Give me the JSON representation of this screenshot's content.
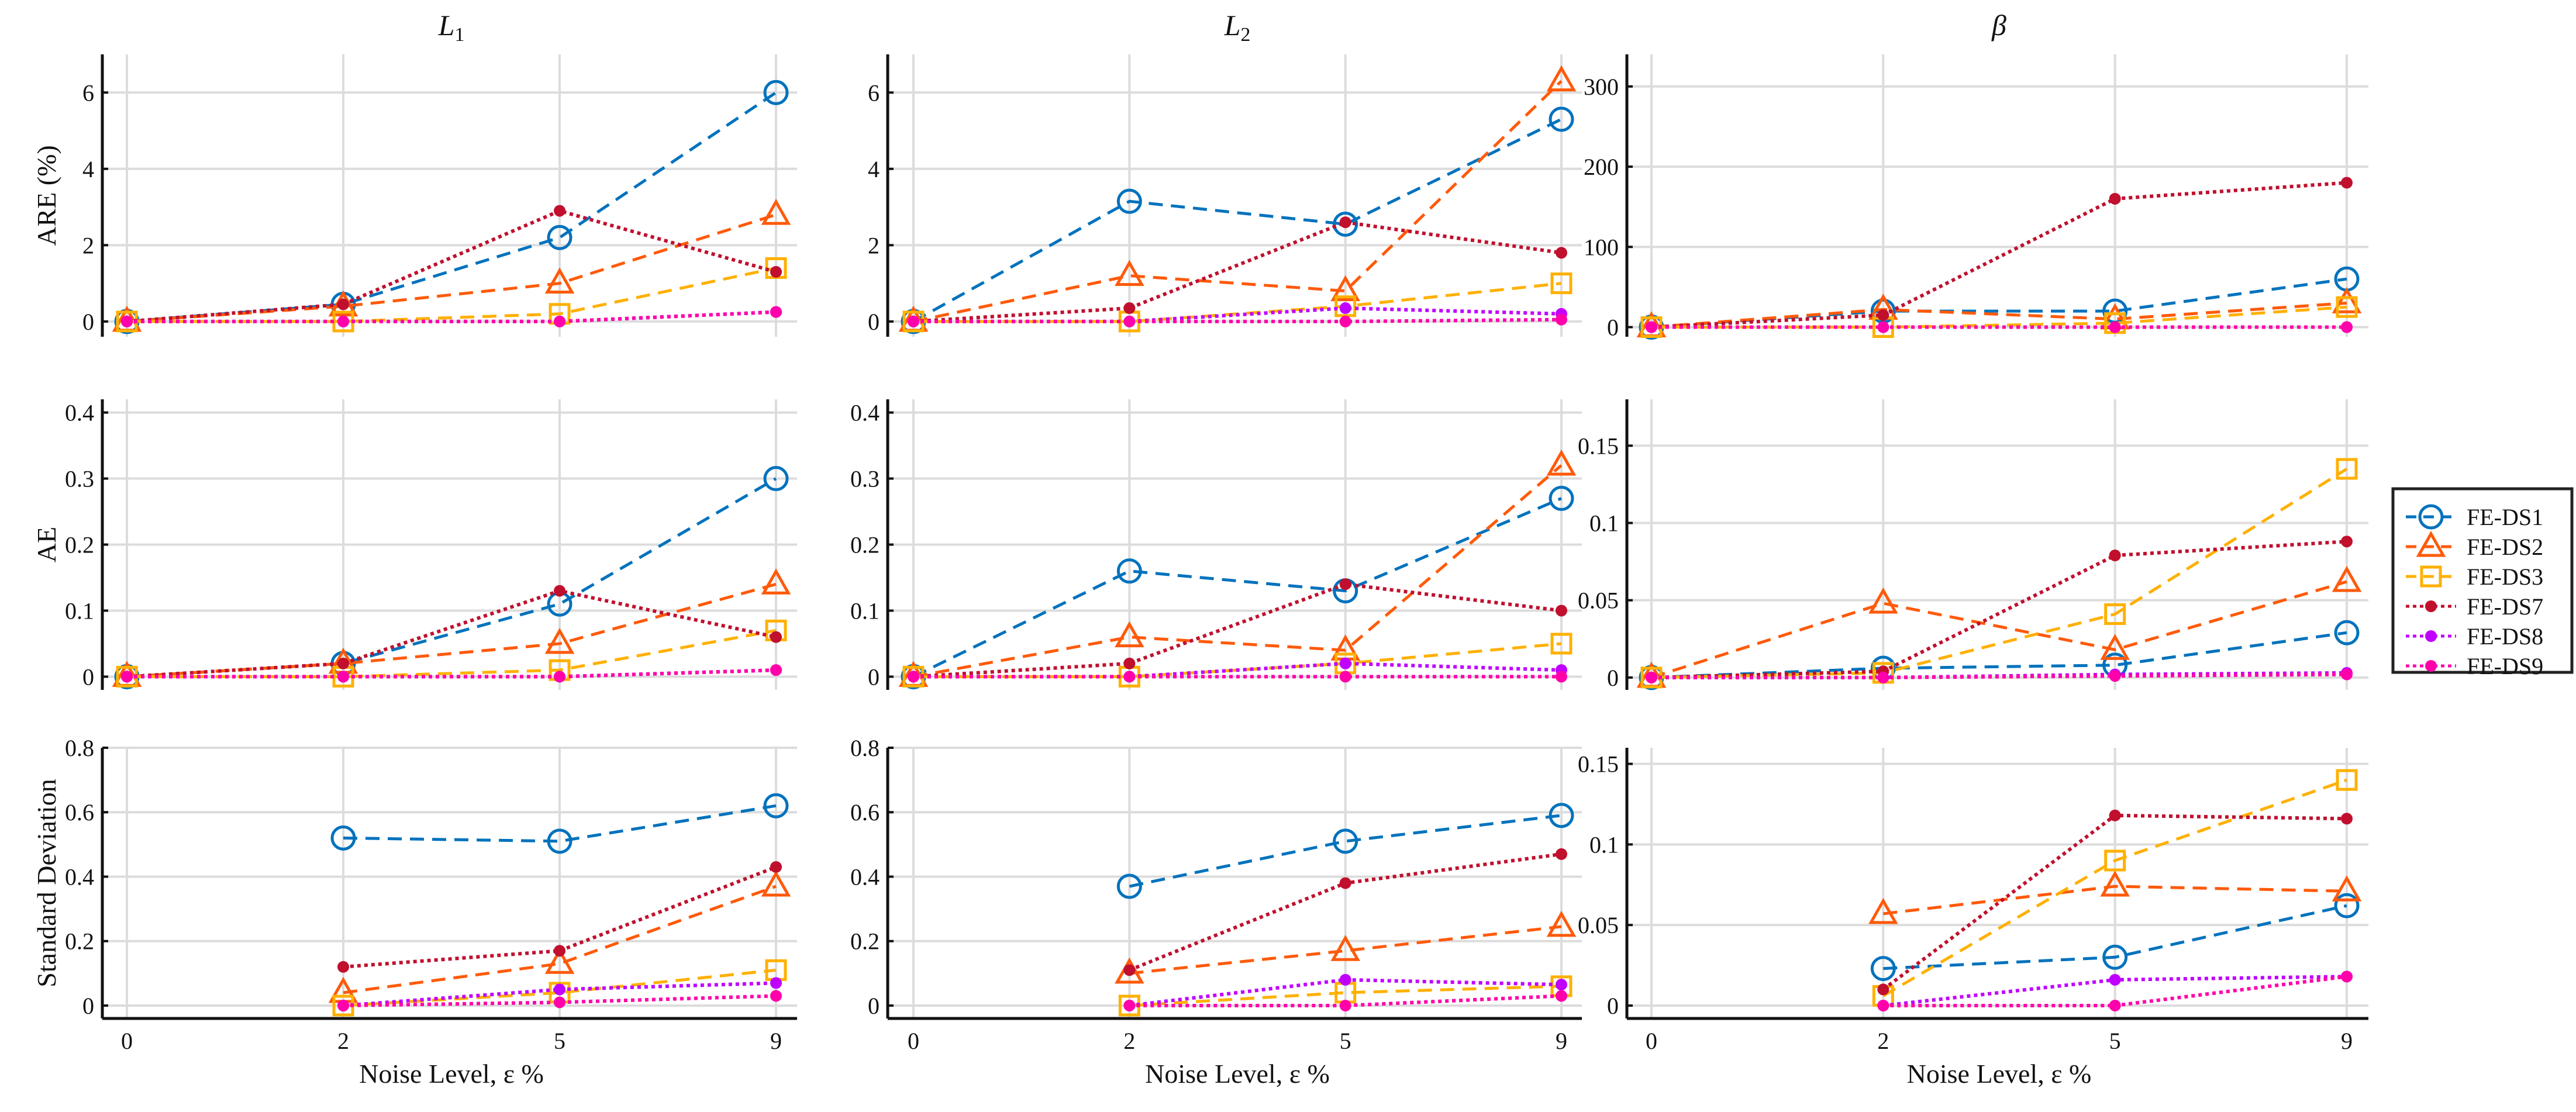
{
  "chart_data": {
    "type": "line",
    "layout": "3x3 grid",
    "x": [
      "0",
      "2",
      "5",
      "9"
    ],
    "xlabel": "Noise Level, ε %",
    "column_titles": [
      "L1",
      "L2",
      "β"
    ],
    "row_ylabels": [
      "ARE (%)",
      "AE",
      "Standard Deviation"
    ],
    "legend": {
      "placement": "right",
      "entries": [
        "FE-DS1",
        "FE-DS2",
        "FE-DS3",
        "FE-DS7",
        "FE-DS8",
        "FE-DS9"
      ]
    },
    "series_style": [
      {
        "name": "FE-DS1",
        "color": "#0072BD",
        "dash": "dashed",
        "marker": "circle"
      },
      {
        "name": "FE-DS2",
        "color": "#FF5A0A",
        "dash": "dashed",
        "marker": "triangle"
      },
      {
        "name": "FE-DS3",
        "color": "#FFB000",
        "dash": "dashed",
        "marker": "square"
      },
      {
        "name": "FE-DS7",
        "color": "#C0102E",
        "dash": "dotted",
        "marker": "dot"
      },
      {
        "name": "FE-DS8",
        "color": "#C000FF",
        "dash": "dotted",
        "marker": "dot"
      },
      {
        "name": "FE-DS9",
        "color": "#FF00AA",
        "dash": "dotted",
        "marker": "dot"
      }
    ],
    "grid": true,
    "panels": [
      {
        "row": 0,
        "col": 0,
        "ylim": [
          -0.4,
          7
        ],
        "yticks": [
          "0",
          "2",
          "4",
          "6"
        ],
        "ytick_values": [
          0,
          2,
          4,
          6
        ],
        "series": [
          [
            0,
            0.45,
            2.2,
            6.0
          ],
          [
            0,
            0.4,
            1.0,
            2.8
          ],
          [
            0,
            0,
            0.2,
            1.4
          ],
          [
            0,
            0.45,
            2.9,
            1.3
          ],
          [
            0,
            0,
            0,
            0.25
          ],
          [
            0,
            0,
            0,
            0.25
          ]
        ]
      },
      {
        "row": 0,
        "col": 1,
        "ylim": [
          -0.4,
          7
        ],
        "yticks": [
          "0",
          "2",
          "4",
          "6"
        ],
        "ytick_values": [
          0,
          2,
          4,
          6
        ],
        "series": [
          [
            0,
            3.15,
            2.55,
            5.3
          ],
          [
            0,
            1.2,
            0.8,
            6.3
          ],
          [
            0,
            0,
            0.4,
            1.0
          ],
          [
            0,
            0.35,
            2.6,
            1.8
          ],
          [
            0,
            0,
            0.35,
            0.2
          ],
          [
            0,
            0,
            0,
            0.05
          ]
        ]
      },
      {
        "row": 0,
        "col": 2,
        "ylim": [
          -12,
          340
        ],
        "yticks": [
          "0",
          "100",
          "200",
          "300"
        ],
        "ytick_values": [
          0,
          100,
          200,
          300
        ],
        "series": [
          [
            0,
            20,
            20,
            60
          ],
          [
            0,
            22,
            10,
            30
          ],
          [
            0,
            0,
            5,
            25
          ],
          [
            0,
            15,
            160,
            180
          ],
          [
            0,
            0,
            0,
            0
          ],
          [
            0,
            0,
            0,
            0
          ]
        ]
      },
      {
        "row": 1,
        "col": 0,
        "ylim": [
          -0.02,
          0.42
        ],
        "yticks": [
          "0",
          "0.1",
          "0.2",
          "0.3",
          "0.4"
        ],
        "ytick_values": [
          0,
          0.1,
          0.2,
          0.3,
          0.4
        ],
        "series": [
          [
            0,
            0.02,
            0.11,
            0.3
          ],
          [
            0,
            0.02,
            0.05,
            0.14
          ],
          [
            0,
            0,
            0.01,
            0.07
          ],
          [
            0,
            0.02,
            0.13,
            0.06
          ],
          [
            0,
            0,
            0,
            0.01
          ],
          [
            0,
            0,
            0,
            0.01
          ]
        ]
      },
      {
        "row": 1,
        "col": 1,
        "ylim": [
          -0.02,
          0.42
        ],
        "yticks": [
          "0",
          "0.1",
          "0.2",
          "0.3",
          "0.4"
        ],
        "ytick_values": [
          0,
          0.1,
          0.2,
          0.3,
          0.4
        ],
        "series": [
          [
            0,
            0.16,
            0.13,
            0.27
          ],
          [
            0,
            0.06,
            0.04,
            0.32
          ],
          [
            0,
            0,
            0.02,
            0.05
          ],
          [
            0,
            0.02,
            0.14,
            0.1
          ],
          [
            0,
            0,
            0.02,
            0.01
          ],
          [
            0,
            0,
            0,
            0
          ]
        ]
      },
      {
        "row": 1,
        "col": 2,
        "ylim": [
          -0.008,
          0.18
        ],
        "yticks": [
          "0",
          "0.05",
          "0.1",
          "0.15"
        ],
        "ytick_values": [
          0,
          0.05,
          0.1,
          0.15
        ],
        "series": [
          [
            0,
            0.006,
            0.008,
            0.029
          ],
          [
            0,
            0.048,
            0.018,
            0.062
          ],
          [
            0,
            0.003,
            0.041,
            0.135
          ],
          [
            0,
            0.004,
            0.079,
            0.088
          ],
          [
            0,
            0,
            0.002,
            0.003
          ],
          [
            0,
            0,
            0.001,
            0.002
          ]
        ]
      },
      {
        "row": 2,
        "col": 0,
        "ylim": [
          -0.04,
          0.8
        ],
        "yticks": [
          "0",
          "0.2",
          "0.4",
          "0.6",
          "0.8"
        ],
        "ytick_values": [
          0,
          0.2,
          0.4,
          0.6,
          0.8
        ],
        "series": [
          [
            null,
            0.52,
            0.51,
            0.62
          ],
          [
            null,
            0.04,
            0.13,
            0.37
          ],
          [
            null,
            0,
            0.04,
            0.11
          ],
          [
            null,
            0.12,
            0.17,
            0.43
          ],
          [
            null,
            0,
            0.05,
            0.07
          ],
          [
            null,
            0,
            0.01,
            0.03
          ]
        ]
      },
      {
        "row": 2,
        "col": 1,
        "ylim": [
          -0.04,
          0.8
        ],
        "yticks": [
          "0",
          "0.2",
          "0.4",
          "0.6",
          "0.8"
        ],
        "ytick_values": [
          0,
          0.2,
          0.4,
          0.6,
          0.8
        ],
        "series": [
          [
            null,
            0.37,
            0.51,
            0.59
          ],
          [
            null,
            0.1,
            0.17,
            0.245
          ],
          [
            null,
            0,
            0.04,
            0.06
          ],
          [
            null,
            0.11,
            0.38,
            0.47
          ],
          [
            null,
            0,
            0.08,
            0.065
          ],
          [
            null,
            0,
            0,
            0.03
          ]
        ]
      },
      {
        "row": 2,
        "col": 2,
        "ylim": [
          -0.008,
          0.16
        ],
        "yticks": [
          "0",
          "0.05",
          "0.1",
          "0.15"
        ],
        "ytick_values": [
          0,
          0.05,
          0.1,
          0.15
        ],
        "series": [
          [
            null,
            0.023,
            0.03,
            0.062
          ],
          [
            null,
            0.057,
            0.074,
            0.071
          ],
          [
            null,
            0.006,
            0.09,
            0.14
          ],
          [
            null,
            0.01,
            0.118,
            0.116
          ],
          [
            null,
            0,
            0.016,
            0.018
          ],
          [
            null,
            0,
            0,
            0.018
          ]
        ]
      }
    ]
  }
}
